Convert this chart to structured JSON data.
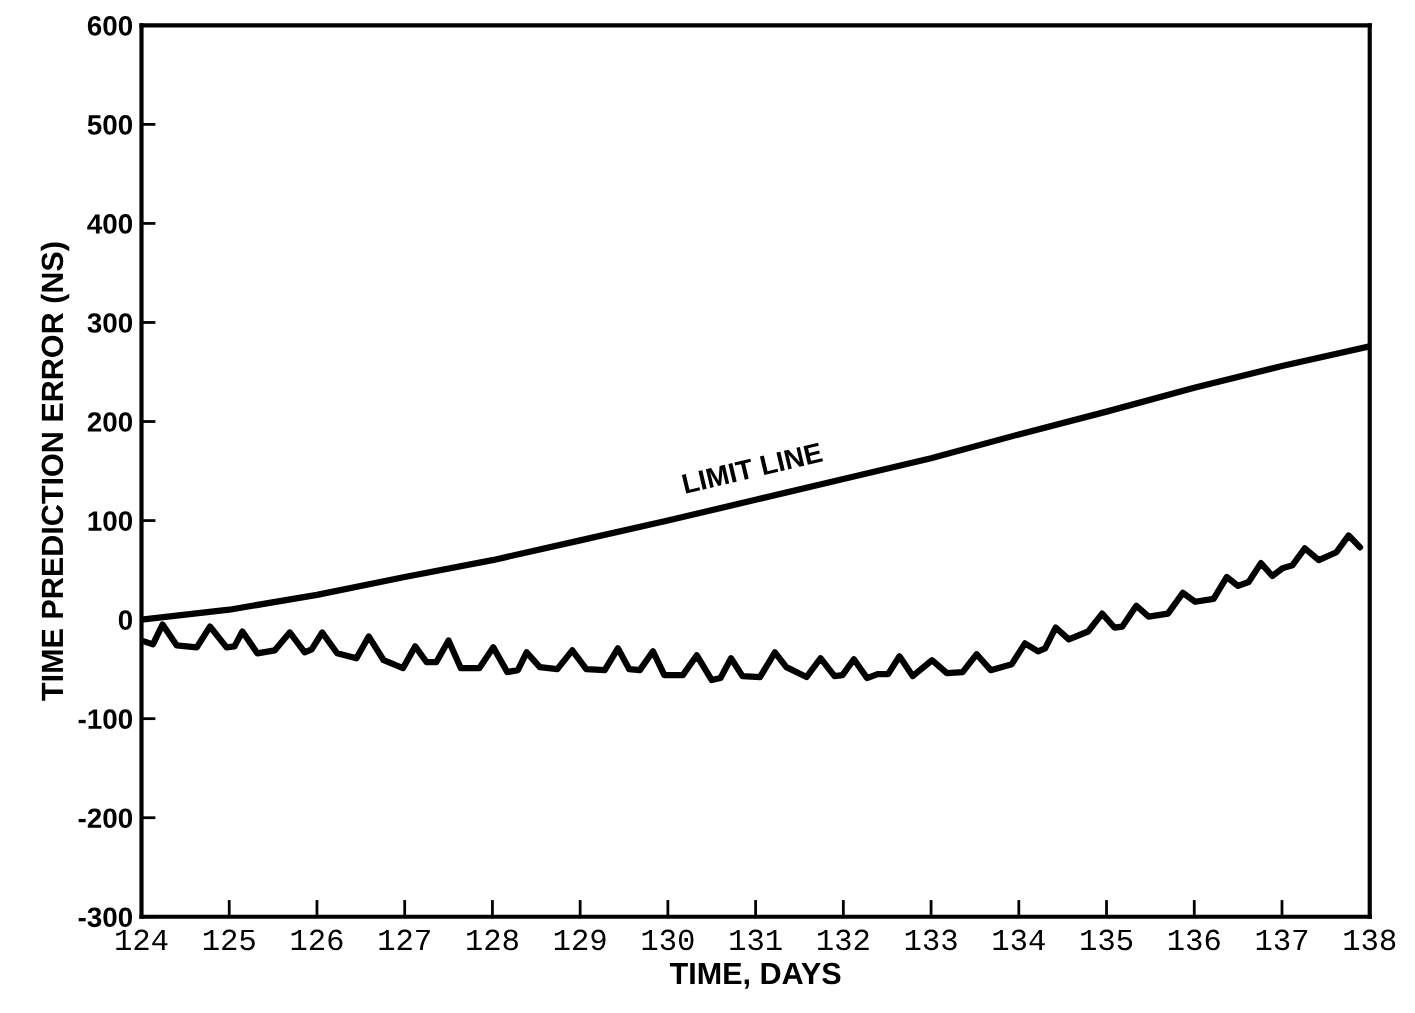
{
  "chart_data": {
    "type": "line",
    "xlabel": "TIME, DAYS",
    "ylabel": "TIME PREDICTION ERROR (NS)",
    "xlim": [
      124,
      138
    ],
    "ylim": [
      -300,
      600
    ],
    "xticks": [
      124,
      125,
      126,
      127,
      128,
      129,
      130,
      131,
      132,
      133,
      134,
      135,
      136,
      137,
      138
    ],
    "yticks": [
      -300,
      -200,
      -100,
      0,
      100,
      200,
      300,
      400,
      500,
      600
    ],
    "grid": false,
    "legend": false,
    "marker": "none",
    "line_style": "solid",
    "series": [
      {
        "name": "LIMIT LINE",
        "color": "#000000",
        "x": [
          124,
          125,
          126,
          127,
          128,
          129,
          130,
          131,
          132,
          133,
          134,
          135,
          136,
          137,
          138
        ],
        "values": [
          0,
          10,
          25,
          43,
          60,
          80,
          100,
          121,
          142,
          163,
          187,
          210,
          234,
          256,
          276
        ]
      },
      {
        "color": "#000000",
        "x": [
          124.03,
          124.13,
          124.24,
          124.4,
          124.63,
          124.78,
          124.97,
          125.06,
          125.15,
          125.32,
          125.52,
          125.69,
          125.86,
          125.94,
          126.06,
          126.23,
          126.45,
          126.59,
          126.76,
          126.98,
          127.12,
          127.25,
          127.36,
          127.5,
          127.64,
          127.85,
          128.01,
          128.17,
          128.29,
          128.39,
          128.54,
          128.74,
          128.91,
          129.07,
          129.28,
          129.43,
          129.56,
          129.68,
          129.83,
          129.96,
          130.17,
          130.33,
          130.5,
          130.6,
          130.72,
          130.85,
          131.05,
          131.22,
          131.35,
          131.58,
          131.74,
          131.9,
          131.99,
          132.12,
          132.27,
          132.39,
          132.51,
          132.64,
          132.79,
          133.01,
          133.18,
          133.36,
          133.43,
          133.52,
          133.68,
          133.92,
          134.07,
          134.22,
          134.3,
          134.42,
          134.57,
          134.79,
          134.95,
          135.09,
          135.18,
          135.34,
          135.48,
          135.7,
          135.87,
          136.01,
          136.22,
          136.37,
          136.5,
          136.62,
          136.76,
          136.89,
          137.01,
          137.12,
          137.26,
          137.42,
          137.62,
          137.76,
          137.89
        ],
        "values": [
          -22,
          -25,
          -5,
          -26,
          -28,
          -7,
          -28,
          -27,
          -12,
          -34,
          -31,
          -13,
          -33,
          -30,
          -13,
          -34,
          -39,
          -17,
          -41,
          -49,
          -27,
          -43,
          -43,
          -21,
          -49,
          -49,
          -28,
          -53,
          -51,
          -33,
          -48,
          -50,
          -31,
          -50,
          -51,
          -29,
          -50,
          -51,
          -32,
          -56,
          -56,
          -36,
          -61,
          -59,
          -39,
          -57,
          -58,
          -33,
          -48,
          -58,
          -39,
          -57,
          -56,
          -40,
          -59,
          -55,
          -55,
          -37,
          -57,
          -41,
          -54,
          -53,
          -45,
          -35,
          -51,
          -45,
          -24,
          -32,
          -29,
          -8,
          -20,
          -12,
          6,
          -8,
          -7,
          14,
          3,
          6,
          27,
          18,
          21,
          43,
          34,
          38,
          57,
          44,
          52,
          55,
          72,
          60,
          68,
          85,
          73
        ]
      }
    ]
  }
}
